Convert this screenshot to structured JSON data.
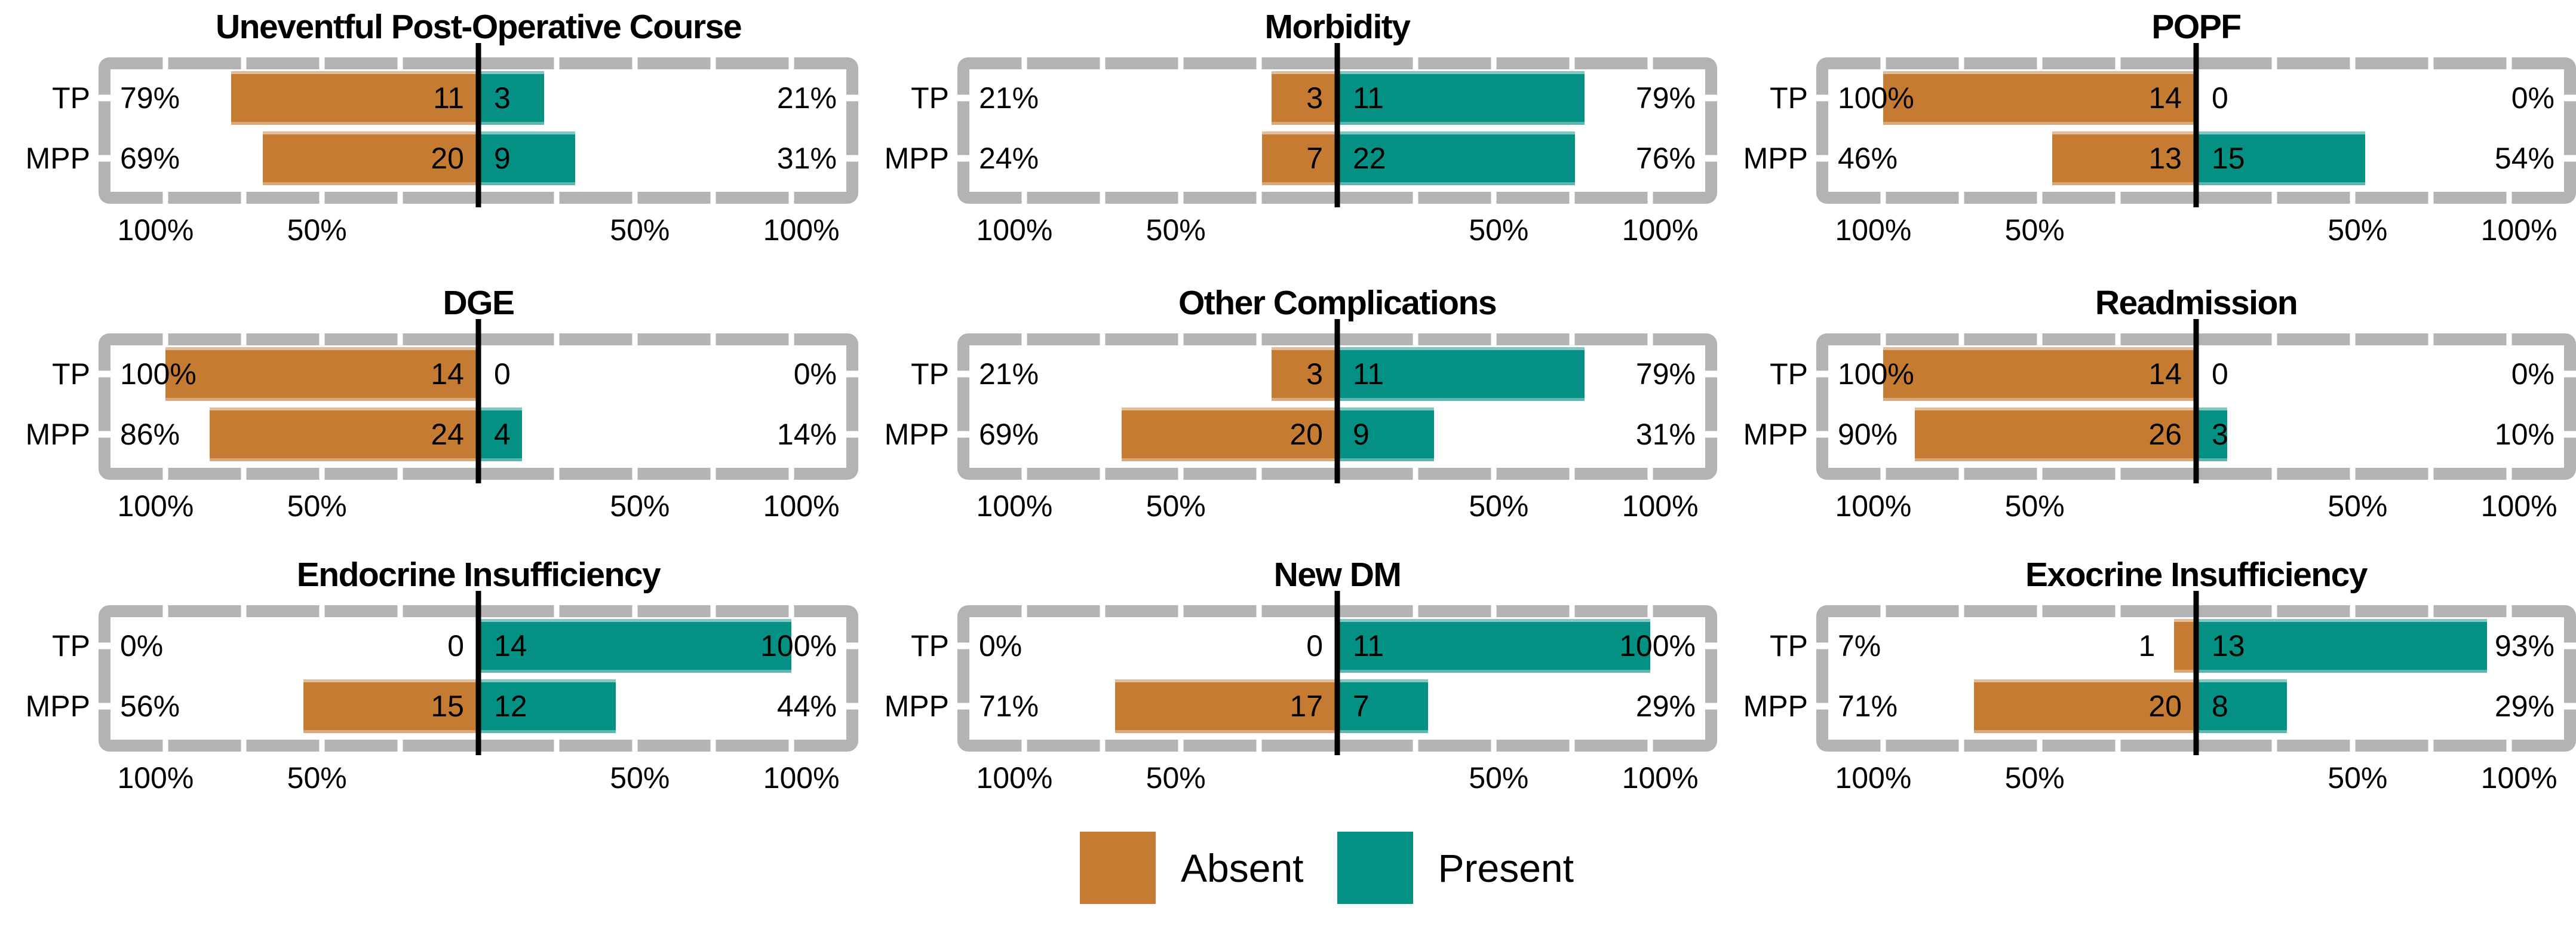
{
  "colors": {
    "absent": "#C57B32",
    "present": "#049184",
    "frame": "#B3B3B3",
    "zero_line": "#000000",
    "text": "#000000",
    "background": "#FFFFFF"
  },
  "legend": {
    "items": [
      {
        "key": "absent",
        "label": "Absent"
      },
      {
        "key": "present",
        "label": "Present"
      }
    ]
  },
  "axis": {
    "row_labels": [
      "TP",
      "MPP"
    ],
    "range": [
      -100,
      100
    ],
    "tick_values": [
      -100,
      -75,
      -50,
      -25,
      0,
      25,
      50,
      75,
      100
    ],
    "tick_labels": [
      {
        "value": -100,
        "label": "100%"
      },
      {
        "value": -50,
        "label": "50%"
      },
      {
        "value": 50,
        "label": "50%"
      },
      {
        "value": 100,
        "label": "100%"
      }
    ]
  },
  "chart_data": [
    {
      "type": "diverging_stacked_bar",
      "title": "Uneventful Post-Operative Course",
      "categories": [
        "TP",
        "MPP"
      ],
      "rows": [
        {
          "group": "TP",
          "absent": {
            "pct": 79,
            "pct_label": "79%",
            "n": 11
          },
          "present": {
            "pct": 21,
            "pct_label": "21%",
            "n": 3
          }
        },
        {
          "group": "MPP",
          "absent": {
            "pct": 69,
            "pct_label": "69%",
            "n": 20
          },
          "present": {
            "pct": 31,
            "pct_label": "31%",
            "n": 9
          }
        }
      ]
    },
    {
      "type": "diverging_stacked_bar",
      "title": "Morbidity",
      "categories": [
        "TP",
        "MPP"
      ],
      "rows": [
        {
          "group": "TP",
          "absent": {
            "pct": 21,
            "pct_label": "21%",
            "n": 3
          },
          "present": {
            "pct": 79,
            "pct_label": "79%",
            "n": 11
          }
        },
        {
          "group": "MPP",
          "absent": {
            "pct": 24,
            "pct_label": "24%",
            "n": 7
          },
          "present": {
            "pct": 76,
            "pct_label": "76%",
            "n": 22
          }
        }
      ]
    },
    {
      "type": "diverging_stacked_bar",
      "title": "POPF",
      "categories": [
        "TP",
        "MPP"
      ],
      "rows": [
        {
          "group": "TP",
          "absent": {
            "pct": 100,
            "pct_label": "100%",
            "n": 14
          },
          "present": {
            "pct": 0,
            "pct_label": "0%",
            "n": 0
          }
        },
        {
          "group": "MPP",
          "absent": {
            "pct": 46,
            "pct_label": "46%",
            "n": 13
          },
          "present": {
            "pct": 54,
            "pct_label": "54%",
            "n": 15
          }
        }
      ]
    },
    {
      "type": "diverging_stacked_bar",
      "title": "DGE",
      "categories": [
        "TP",
        "MPP"
      ],
      "rows": [
        {
          "group": "TP",
          "absent": {
            "pct": 100,
            "pct_label": "100%",
            "n": 14
          },
          "present": {
            "pct": 0,
            "pct_label": "0%",
            "n": 0
          }
        },
        {
          "group": "MPP",
          "absent": {
            "pct": 86,
            "pct_label": "86%",
            "n": 24
          },
          "present": {
            "pct": 14,
            "pct_label": "14%",
            "n": 4
          }
        }
      ]
    },
    {
      "type": "diverging_stacked_bar",
      "title": "Other Complications",
      "categories": [
        "TP",
        "MPP"
      ],
      "rows": [
        {
          "group": "TP",
          "absent": {
            "pct": 21,
            "pct_label": "21%",
            "n": 3
          },
          "present": {
            "pct": 79,
            "pct_label": "79%",
            "n": 11
          }
        },
        {
          "group": "MPP",
          "absent": {
            "pct": 69,
            "pct_label": "69%",
            "n": 20
          },
          "present": {
            "pct": 31,
            "pct_label": "31%",
            "n": 9
          }
        }
      ]
    },
    {
      "type": "diverging_stacked_bar",
      "title": "Readmission",
      "categories": [
        "TP",
        "MPP"
      ],
      "rows": [
        {
          "group": "TP",
          "absent": {
            "pct": 100,
            "pct_label": "100%",
            "n": 14
          },
          "present": {
            "pct": 0,
            "pct_label": "0%",
            "n": 0
          }
        },
        {
          "group": "MPP",
          "absent": {
            "pct": 90,
            "pct_label": "90%",
            "n": 26
          },
          "present": {
            "pct": 10,
            "pct_label": "10%",
            "n": 3
          }
        }
      ]
    },
    {
      "type": "diverging_stacked_bar",
      "title": "Endocrine Insufficiency",
      "categories": [
        "TP",
        "MPP"
      ],
      "rows": [
        {
          "group": "TP",
          "absent": {
            "pct": 0,
            "pct_label": "0%",
            "n": 0
          },
          "present": {
            "pct": 100,
            "pct_label": "100%",
            "n": 14
          }
        },
        {
          "group": "MPP",
          "absent": {
            "pct": 56,
            "pct_label": "56%",
            "n": 15
          },
          "present": {
            "pct": 44,
            "pct_label": "44%",
            "n": 12
          }
        }
      ]
    },
    {
      "type": "diverging_stacked_bar",
      "title": "New DM",
      "categories": [
        "TP",
        "MPP"
      ],
      "rows": [
        {
          "group": "TP",
          "absent": {
            "pct": 0,
            "pct_label": "0%",
            "n": 0
          },
          "present": {
            "pct": 100,
            "pct_label": "100%",
            "n": 11
          }
        },
        {
          "group": "MPP",
          "absent": {
            "pct": 71,
            "pct_label": "71%",
            "n": 17
          },
          "present": {
            "pct": 29,
            "pct_label": "29%",
            "n": 7
          }
        }
      ]
    },
    {
      "type": "diverging_stacked_bar",
      "title": "Exocrine Insufficiency",
      "categories": [
        "TP",
        "MPP"
      ],
      "rows": [
        {
          "group": "TP",
          "absent": {
            "pct": 7,
            "pct_label": "7%",
            "n": 1
          },
          "present": {
            "pct": 93,
            "pct_label": "93%",
            "n": 13
          }
        },
        {
          "group": "MPP",
          "absent": {
            "pct": 71,
            "pct_label": "71%",
            "n": 20
          },
          "present": {
            "pct": 29,
            "pct_label": "29%",
            "n": 8
          }
        }
      ]
    }
  ]
}
